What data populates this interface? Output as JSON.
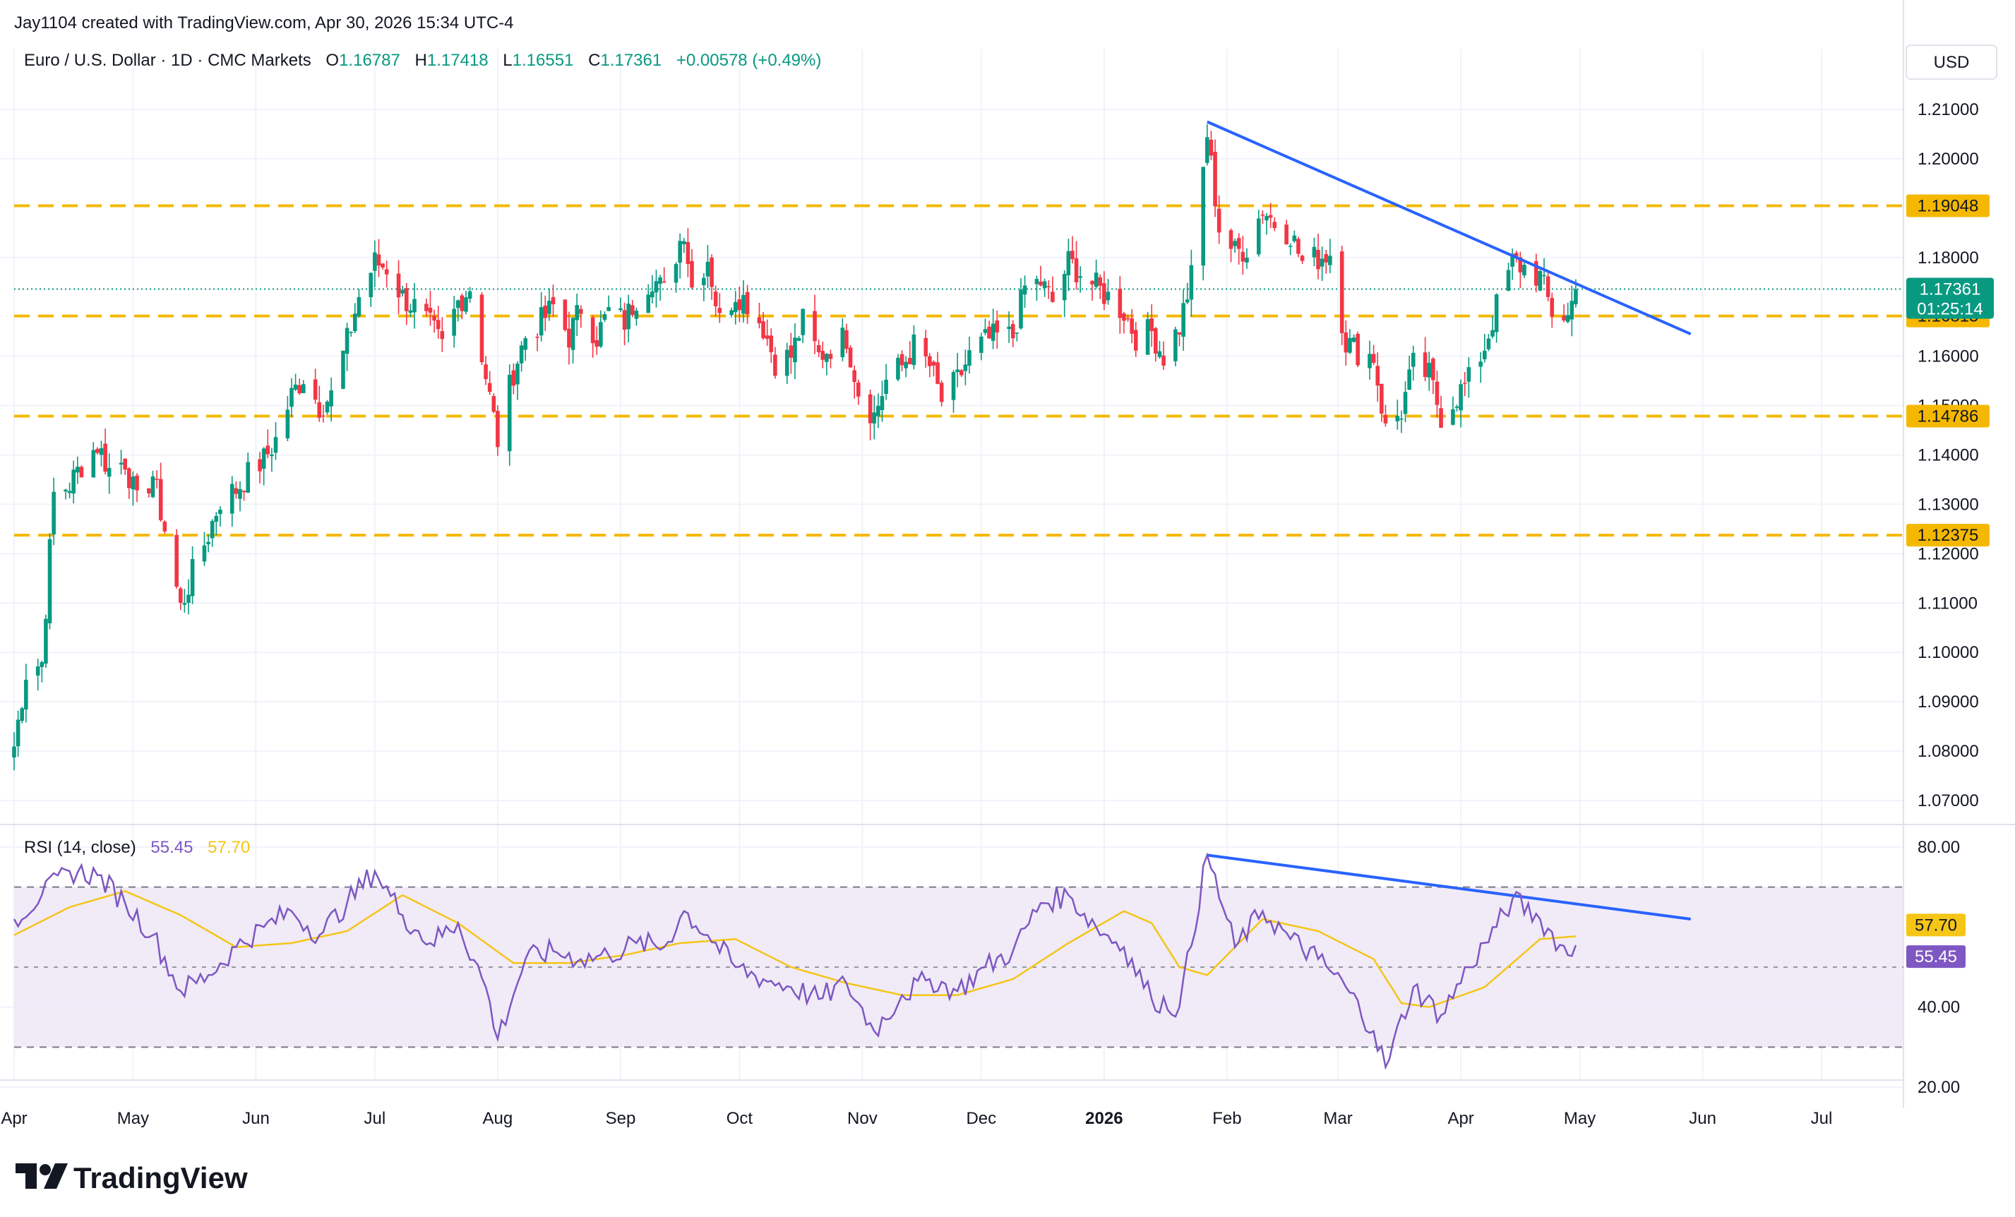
{
  "header": {
    "created_by": "Jay1104 created with TradingView.com, Apr 30, 2026 15:34 UTC-4"
  },
  "symbol_bar": {
    "symbol": "Euro / U.S. Dollar · 1D · CMC Markets",
    "o_label": "O",
    "o_value": "1.16787",
    "h_label": "H",
    "h_value": "1.17418",
    "l_label": "L",
    "l_value": "1.16551",
    "c_label": "C",
    "c_value": "1.17361",
    "change": "+0.00578 (+0.49%)"
  },
  "currency_button": {
    "label": "USD"
  },
  "rsi_bar": {
    "label": "RSI (14, close)",
    "rsi_value": "55.45",
    "ma_value": "57.70"
  },
  "price_tags": {
    "last_price": "1.17361",
    "countdown": "01:25:14",
    "rsi_ma_tag": "57.70",
    "rsi_tag": "55.45"
  },
  "horizontal_levels": [
    {
      "label": "1.19048",
      "value": 1.19048
    },
    {
      "label": "1.16815",
      "value": 1.16815
    },
    {
      "label": "1.14786",
      "value": 1.14786
    },
    {
      "label": "1.12375",
      "value": 1.12375
    }
  ],
  "logo": {
    "text": "TradingView"
  },
  "colors": {
    "up": "#089981",
    "down": "#f23645",
    "level": "#f5b800",
    "trendline": "#2962ff",
    "rsi_line": "#7e57c2",
    "rsi_ma": "#f5c518",
    "rsi_band": "#ede7f6"
  },
  "chart_data": [
    {
      "type": "candlestick",
      "title": "Euro / U.S. Dollar · 1D · CMC Markets",
      "ylim": [
        1.065,
        1.215
      ],
      "y_ticks": [
        "1.21000",
        "1.20000",
        "1.18000",
        "1.16000",
        "1.15000",
        "1.14000",
        "1.13000",
        "1.12000",
        "1.11000",
        "1.10000",
        "1.09000",
        "1.08000",
        "1.07000"
      ],
      "y_tick_values": [
        1.21,
        1.2,
        1.18,
        1.16,
        1.15,
        1.14,
        1.13,
        1.12,
        1.11,
        1.1,
        1.09,
        1.08,
        1.07
      ],
      "x_ticks": [
        "Apr",
        "May",
        "Jun",
        "Jul",
        "Aug",
        "Sep",
        "Oct",
        "Nov",
        "Dec",
        "2026",
        "Feb",
        "Mar",
        "Apr",
        "May",
        "Jun",
        "Jul"
      ],
      "x_tick_dates": [
        "2025-04-01",
        "2025-05-01",
        "2025-06-01",
        "2025-07-01",
        "2025-08-01",
        "2025-09-01",
        "2025-10-01",
        "2025-11-01",
        "2025-12-01",
        "2026-01-01",
        "2026-02-01",
        "2026-03-01",
        "2026-04-01",
        "2026-05-01",
        "2026-06-01",
        "2026-07-01"
      ],
      "series_close": [
        [
          "2025-04-01",
          1.081
        ],
        [
          "2025-04-04",
          1.096
        ],
        [
          "2025-04-08",
          1.098
        ],
        [
          "2025-04-11",
          1.132
        ],
        [
          "2025-04-15",
          1.134
        ],
        [
          "2025-04-18",
          1.138
        ],
        [
          "2025-04-22",
          1.142
        ],
        [
          "2025-04-25",
          1.137
        ],
        [
          "2025-04-29",
          1.139
        ],
        [
          "2025-05-02",
          1.13
        ],
        [
          "2025-05-06",
          1.136
        ],
        [
          "2025-05-09",
          1.125
        ],
        [
          "2025-05-13",
          1.109
        ],
        [
          "2025-05-16",
          1.116
        ],
        [
          "2025-05-20",
          1.124
        ],
        [
          "2025-05-23",
          1.131
        ],
        [
          "2025-05-27",
          1.133
        ],
        [
          "2025-05-30",
          1.136
        ],
        [
          "2025-06-03",
          1.139
        ],
        [
          "2025-06-06",
          1.143
        ],
        [
          "2025-06-10",
          1.152
        ],
        [
          "2025-06-13",
          1.156
        ],
        [
          "2025-06-17",
          1.15
        ],
        [
          "2025-06-20",
          1.152
        ],
        [
          "2025-06-24",
          1.163
        ],
        [
          "2025-06-27",
          1.172
        ],
        [
          "2025-07-01",
          1.179
        ],
        [
          "2025-07-04",
          1.178
        ],
        [
          "2025-07-08",
          1.172
        ],
        [
          "2025-07-11",
          1.17
        ],
        [
          "2025-07-15",
          1.166
        ],
        [
          "2025-07-18",
          1.162
        ],
        [
          "2025-07-22",
          1.171
        ],
        [
          "2025-07-25",
          1.174
        ],
        [
          "2025-07-29",
          1.156
        ],
        [
          "2025-08-01",
          1.143
        ],
        [
          "2025-08-05",
          1.157
        ],
        [
          "2025-08-08",
          1.164
        ],
        [
          "2025-08-12",
          1.167
        ],
        [
          "2025-08-15",
          1.17
        ],
        [
          "2025-08-19",
          1.164
        ],
        [
          "2025-08-22",
          1.17
        ],
        [
          "2025-08-26",
          1.164
        ],
        [
          "2025-08-29",
          1.169
        ],
        [
          "2025-09-02",
          1.167
        ],
        [
          "2025-09-05",
          1.172
        ],
        [
          "2025-09-09",
          1.176
        ],
        [
          "2025-09-12",
          1.173
        ],
        [
          "2025-09-17",
          1.186
        ],
        [
          "2025-09-19",
          1.174
        ],
        [
          "2025-09-23",
          1.18
        ],
        [
          "2025-09-26",
          1.167
        ],
        [
          "2025-09-30",
          1.173
        ],
        [
          "2025-10-03",
          1.171
        ],
        [
          "2025-10-07",
          1.166
        ],
        [
          "2025-10-10",
          1.159
        ],
        [
          "2025-10-14",
          1.16
        ],
        [
          "2025-10-17",
          1.167
        ],
        [
          "2025-10-21",
          1.16
        ],
        [
          "2025-10-24",
          1.162
        ],
        [
          "2025-10-28",
          1.164
        ],
        [
          "2025-10-31",
          1.153
        ],
        [
          "2025-11-04",
          1.148
        ],
        [
          "2025-11-07",
          1.155
        ],
        [
          "2025-11-11",
          1.158
        ],
        [
          "2025-11-14",
          1.162
        ],
        [
          "2025-11-18",
          1.158
        ],
        [
          "2025-11-21",
          1.151
        ],
        [
          "2025-11-25",
          1.155
        ],
        [
          "2025-11-28",
          1.16
        ],
        [
          "2025-12-02",
          1.163
        ],
        [
          "2025-12-05",
          1.164
        ],
        [
          "2025-12-09",
          1.164
        ],
        [
          "2025-12-12",
          1.174
        ],
        [
          "2025-12-16",
          1.175
        ],
        [
          "2025-12-19",
          1.171
        ],
        [
          "2025-12-23",
          1.179
        ],
        [
          "2025-12-26",
          1.177
        ],
        [
          "2025-12-30",
          1.174
        ],
        [
          "2026-01-02",
          1.172
        ],
        [
          "2026-01-06",
          1.169
        ],
        [
          "2026-01-09",
          1.164
        ],
        [
          "2026-01-13",
          1.165
        ],
        [
          "2026-01-16",
          1.16
        ],
        [
          "2026-01-20",
          1.166
        ],
        [
          "2026-01-23",
          1.176
        ],
        [
          "2026-01-27",
          1.205
        ],
        [
          "2026-01-30",
          1.186
        ],
        [
          "2026-02-03",
          1.181
        ],
        [
          "2026-02-06",
          1.182
        ],
        [
          "2026-02-10",
          1.19
        ],
        [
          "2026-02-13",
          1.187
        ],
        [
          "2026-02-17",
          1.185
        ],
        [
          "2026-02-20",
          1.179
        ],
        [
          "2026-02-24",
          1.18
        ],
        [
          "2026-02-27",
          1.181
        ],
        [
          "2026-03-03",
          1.163
        ],
        [
          "2026-03-06",
          1.161
        ],
        [
          "2026-03-10",
          1.16
        ],
        [
          "2026-03-13",
          1.145
        ],
        [
          "2026-03-17",
          1.149
        ],
        [
          "2026-03-20",
          1.158
        ],
        [
          "2026-03-24",
          1.156
        ],
        [
          "2026-03-27",
          1.148
        ],
        [
          "2026-03-31",
          1.152
        ],
        [
          "2026-04-03",
          1.155
        ],
        [
          "2026-04-07",
          1.162
        ],
        [
          "2026-04-10",
          1.17
        ],
        [
          "2026-04-14",
          1.179
        ],
        [
          "2026-04-17",
          1.178
        ],
        [
          "2026-04-21",
          1.176
        ],
        [
          "2026-04-24",
          1.169
        ],
        [
          "2026-04-28",
          1.168
        ],
        [
          "2026-04-30",
          1.17361
        ]
      ],
      "trendline": [
        [
          "2026-01-27",
          1.2075
        ],
        [
          "2026-05-29",
          1.1645
        ]
      ]
    },
    {
      "type": "line",
      "title": "RSI (14, close)",
      "ylim": [
        20,
        80
      ],
      "y_ticks": [
        "80.00",
        "40.00",
        "20.00"
      ],
      "y_tick_values": [
        80,
        40,
        20
      ],
      "band": [
        30,
        70
      ],
      "midline": 50,
      "series": [
        {
          "name": "RSI",
          "values": [
            [
              "2025-04-01",
              62
            ],
            [
              "2025-04-08",
              68
            ],
            [
              "2025-04-15",
              74
            ],
            [
              "2025-04-22",
              73
            ],
            [
              "2025-04-29",
              66
            ],
            [
              "2025-05-06",
              58
            ],
            [
              "2025-05-13",
              44
            ],
            [
              "2025-05-20",
              48
            ],
            [
              "2025-05-27",
              55
            ],
            [
              "2025-06-03",
              60
            ],
            [
              "2025-06-10",
              64
            ],
            [
              "2025-06-17",
              58
            ],
            [
              "2025-06-24",
              66
            ],
            [
              "2025-07-01",
              74
            ],
            [
              "2025-07-08",
              63
            ],
            [
              "2025-07-15",
              56
            ],
            [
              "2025-07-22",
              61
            ],
            [
              "2025-07-29",
              45
            ],
            [
              "2025-08-01",
              32
            ],
            [
              "2025-08-08",
              52
            ],
            [
              "2025-08-15",
              54
            ],
            [
              "2025-08-22",
              52
            ],
            [
              "2025-08-29",
              53
            ],
            [
              "2025-09-05",
              56
            ],
            [
              "2025-09-12",
              55
            ],
            [
              "2025-09-17",
              64
            ],
            [
              "2025-09-23",
              58
            ],
            [
              "2025-09-30",
              50
            ],
            [
              "2025-10-07",
              47
            ],
            [
              "2025-10-14",
              45
            ],
            [
              "2025-10-21",
              42
            ],
            [
              "2025-10-28",
              46
            ],
            [
              "2025-11-04",
              34
            ],
            [
              "2025-11-11",
              43
            ],
            [
              "2025-11-18",
              47
            ],
            [
              "2025-11-25",
              44
            ],
            [
              "2025-12-02",
              50
            ],
            [
              "2025-12-09",
              54
            ],
            [
              "2025-12-16",
              66
            ],
            [
              "2025-12-23",
              68
            ],
            [
              "2025-12-30",
              60
            ],
            [
              "2026-01-06",
              55
            ],
            [
              "2026-01-13",
              42
            ],
            [
              "2026-01-20",
              40
            ],
            [
              "2026-01-27",
              78
            ],
            [
              "2026-02-03",
              55
            ],
            [
              "2026-02-10",
              64
            ],
            [
              "2026-02-17",
              57
            ],
            [
              "2026-02-24",
              52
            ],
            [
              "2026-03-03",
              45
            ],
            [
              "2026-03-10",
              34
            ],
            [
              "2026-03-13",
              25
            ],
            [
              "2026-03-20",
              45
            ],
            [
              "2026-03-27",
              38
            ],
            [
              "2026-04-03",
              50
            ],
            [
              "2026-04-10",
              60
            ],
            [
              "2026-04-14",
              67
            ],
            [
              "2026-04-21",
              62
            ],
            [
              "2026-04-28",
              53
            ],
            [
              "2026-04-30",
              55.45
            ]
          ]
        },
        {
          "name": "RSI-based MA",
          "values": [
            [
              "2025-04-01",
              58
            ],
            [
              "2025-04-15",
              65
            ],
            [
              "2025-04-29",
              69
            ],
            [
              "2025-05-13",
              63
            ],
            [
              "2025-05-27",
              55
            ],
            [
              "2025-06-10",
              56
            ],
            [
              "2025-06-24",
              59
            ],
            [
              "2025-07-08",
              68
            ],
            [
              "2025-07-22",
              61
            ],
            [
              "2025-08-05",
              51
            ],
            [
              "2025-08-19",
              51
            ],
            [
              "2025-09-02",
              53
            ],
            [
              "2025-09-16",
              56
            ],
            [
              "2025-09-30",
              57
            ],
            [
              "2025-10-14",
              50
            ],
            [
              "2025-10-28",
              46
            ],
            [
              "2025-11-11",
              43
            ],
            [
              "2025-11-25",
              43
            ],
            [
              "2025-12-09",
              47
            ],
            [
              "2025-12-23",
              56
            ],
            [
              "2026-01-06",
              64
            ],
            [
              "2026-01-13",
              61
            ],
            [
              "2026-01-20",
              50
            ],
            [
              "2026-01-27",
              48
            ],
            [
              "2026-02-10",
              62
            ],
            [
              "2026-02-24",
              59
            ],
            [
              "2026-03-10",
              52
            ],
            [
              "2026-03-17",
              41
            ],
            [
              "2026-03-24",
              40
            ],
            [
              "2026-04-07",
              45
            ],
            [
              "2026-04-21",
              57
            ],
            [
              "2026-04-30",
              57.7
            ]
          ]
        }
      ],
      "trendline": [
        [
          "2026-01-27",
          78
        ],
        [
          "2026-05-29",
          62
        ]
      ]
    }
  ]
}
